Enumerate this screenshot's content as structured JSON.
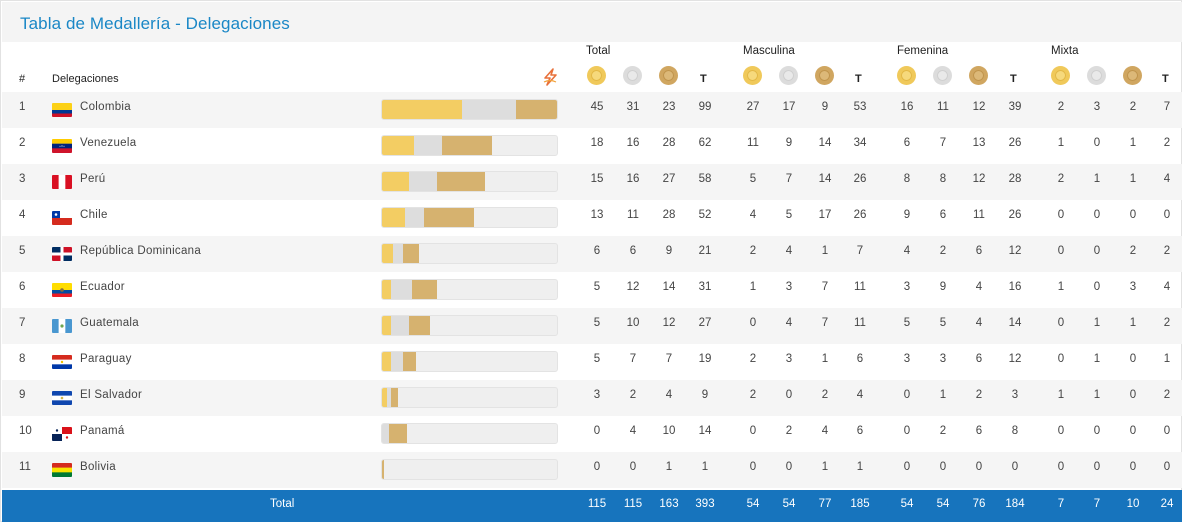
{
  "title": "Tabla de Medallería - Delegaciones",
  "groups": [
    "Total",
    "Masculina",
    "Femenina",
    "Mixta"
  ],
  "columns": {
    "rank": "#",
    "delegation": "Delegaciones",
    "total_short": "T"
  },
  "medal_icons": [
    "gold-medal-icon",
    "silver-medal-icon",
    "bronze-medal-icon"
  ],
  "colors": {
    "accent": "#1a87c6",
    "total_bar": "#1774bd",
    "gold": "#f3cd63",
    "silver": "#dddddd",
    "bronze": "#d6b26f"
  },
  "rows": [
    {
      "rank": "1",
      "name": "Colombia",
      "flag": "colombia-flag-icon",
      "total": [
        "45",
        "31",
        "23",
        "99"
      ],
      "masc": [
        "27",
        "17",
        "9",
        "53"
      ],
      "fem": [
        "16",
        "11",
        "12",
        "39"
      ],
      "mix": [
        "2",
        "3",
        "2",
        "7"
      ]
    },
    {
      "rank": "2",
      "name": "Venezuela",
      "flag": "venezuela-flag-icon",
      "total": [
        "18",
        "16",
        "28",
        "62"
      ],
      "masc": [
        "11",
        "9",
        "14",
        "34"
      ],
      "fem": [
        "6",
        "7",
        "13",
        "26"
      ],
      "mix": [
        "1",
        "0",
        "1",
        "2"
      ]
    },
    {
      "rank": "3",
      "name": "Perú",
      "flag": "peru-flag-icon",
      "total": [
        "15",
        "16",
        "27",
        "58"
      ],
      "masc": [
        "5",
        "7",
        "14",
        "26"
      ],
      "fem": [
        "8",
        "8",
        "12",
        "28"
      ],
      "mix": [
        "2",
        "1",
        "1",
        "4"
      ]
    },
    {
      "rank": "4",
      "name": "Chile",
      "flag": "chile-flag-icon",
      "total": [
        "13",
        "11",
        "28",
        "52"
      ],
      "masc": [
        "4",
        "5",
        "17",
        "26"
      ],
      "fem": [
        "9",
        "6",
        "11",
        "26"
      ],
      "mix": [
        "0",
        "0",
        "0",
        "0"
      ]
    },
    {
      "rank": "5",
      "name": "República Dominicana",
      "flag": "dominican-republic-flag-icon",
      "total": [
        "6",
        "6",
        "9",
        "21"
      ],
      "masc": [
        "2",
        "4",
        "1",
        "7"
      ],
      "fem": [
        "4",
        "2",
        "6",
        "12"
      ],
      "mix": [
        "0",
        "0",
        "2",
        "2"
      ]
    },
    {
      "rank": "6",
      "name": "Ecuador",
      "flag": "ecuador-flag-icon",
      "total": [
        "5",
        "12",
        "14",
        "31"
      ],
      "masc": [
        "1",
        "3",
        "7",
        "11"
      ],
      "fem": [
        "3",
        "9",
        "4",
        "16"
      ],
      "mix": [
        "1",
        "0",
        "3",
        "4"
      ]
    },
    {
      "rank": "7",
      "name": "Guatemala",
      "flag": "guatemala-flag-icon",
      "total": [
        "5",
        "10",
        "12",
        "27"
      ],
      "masc": [
        "0",
        "4",
        "7",
        "11"
      ],
      "fem": [
        "5",
        "5",
        "4",
        "14"
      ],
      "mix": [
        "0",
        "1",
        "1",
        "2"
      ]
    },
    {
      "rank": "8",
      "name": "Paraguay",
      "flag": "paraguay-flag-icon",
      "total": [
        "5",
        "7",
        "7",
        "19"
      ],
      "masc": [
        "2",
        "3",
        "1",
        "6"
      ],
      "fem": [
        "3",
        "3",
        "6",
        "12"
      ],
      "mix": [
        "0",
        "1",
        "0",
        "1"
      ]
    },
    {
      "rank": "9",
      "name": "El Salvador",
      "flag": "el-salvador-flag-icon",
      "total": [
        "3",
        "2",
        "4",
        "9"
      ],
      "masc": [
        "2",
        "0",
        "2",
        "4"
      ],
      "fem": [
        "0",
        "1",
        "2",
        "3"
      ],
      "mix": [
        "1",
        "1",
        "0",
        "2"
      ]
    },
    {
      "rank": "10",
      "name": "Panamá",
      "flag": "panama-flag-icon",
      "total": [
        "0",
        "4",
        "10",
        "14"
      ],
      "masc": [
        "0",
        "2",
        "4",
        "6"
      ],
      "fem": [
        "0",
        "2",
        "6",
        "8"
      ],
      "mix": [
        "0",
        "0",
        "0",
        "0"
      ]
    },
    {
      "rank": "11",
      "name": "Bolivia",
      "flag": "bolivia-flag-icon",
      "total": [
        "0",
        "0",
        "1",
        "1"
      ],
      "masc": [
        "0",
        "0",
        "1",
        "1"
      ],
      "fem": [
        "0",
        "0",
        "0",
        "0"
      ],
      "mix": [
        "0",
        "0",
        "0",
        "0"
      ]
    }
  ],
  "totals": {
    "label": "Total",
    "total": [
      "115",
      "115",
      "163",
      "393"
    ],
    "masc": [
      "54",
      "54",
      "77",
      "185"
    ],
    "fem": [
      "54",
      "54",
      "76",
      "184"
    ],
    "mix": [
      "7",
      "7",
      "10",
      "24"
    ]
  }
}
